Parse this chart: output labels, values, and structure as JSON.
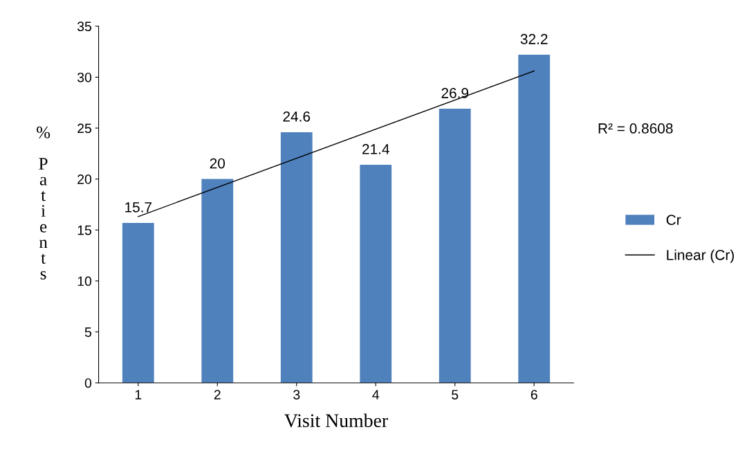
{
  "chart_data": {
    "type": "bar",
    "xlabel": "Visit Number",
    "ylabel": "% Patients",
    "categories": [
      "1",
      "2",
      "3",
      "4",
      "5",
      "6"
    ],
    "series": [
      {
        "name": "Cr",
        "color": "#4f81bd",
        "values": [
          15.7,
          20,
          24.6,
          21.4,
          26.9,
          32.2
        ],
        "value_labels": [
          "15.7",
          "20",
          "24.6",
          "21.4",
          "26.9",
          "32.2"
        ]
      },
      {
        "name": "Linear (Cr)",
        "type": "line",
        "color": "#000000",
        "x": [
          "1",
          "6"
        ],
        "values": [
          16.32,
          30.61
        ]
      }
    ],
    "ylim": [
      0,
      35
    ],
    "yticks": [
      0,
      5,
      10,
      15,
      20,
      25,
      30,
      35
    ],
    "grid": false,
    "legend": "right",
    "annotations": [
      "R² = 0.8608"
    ]
  }
}
